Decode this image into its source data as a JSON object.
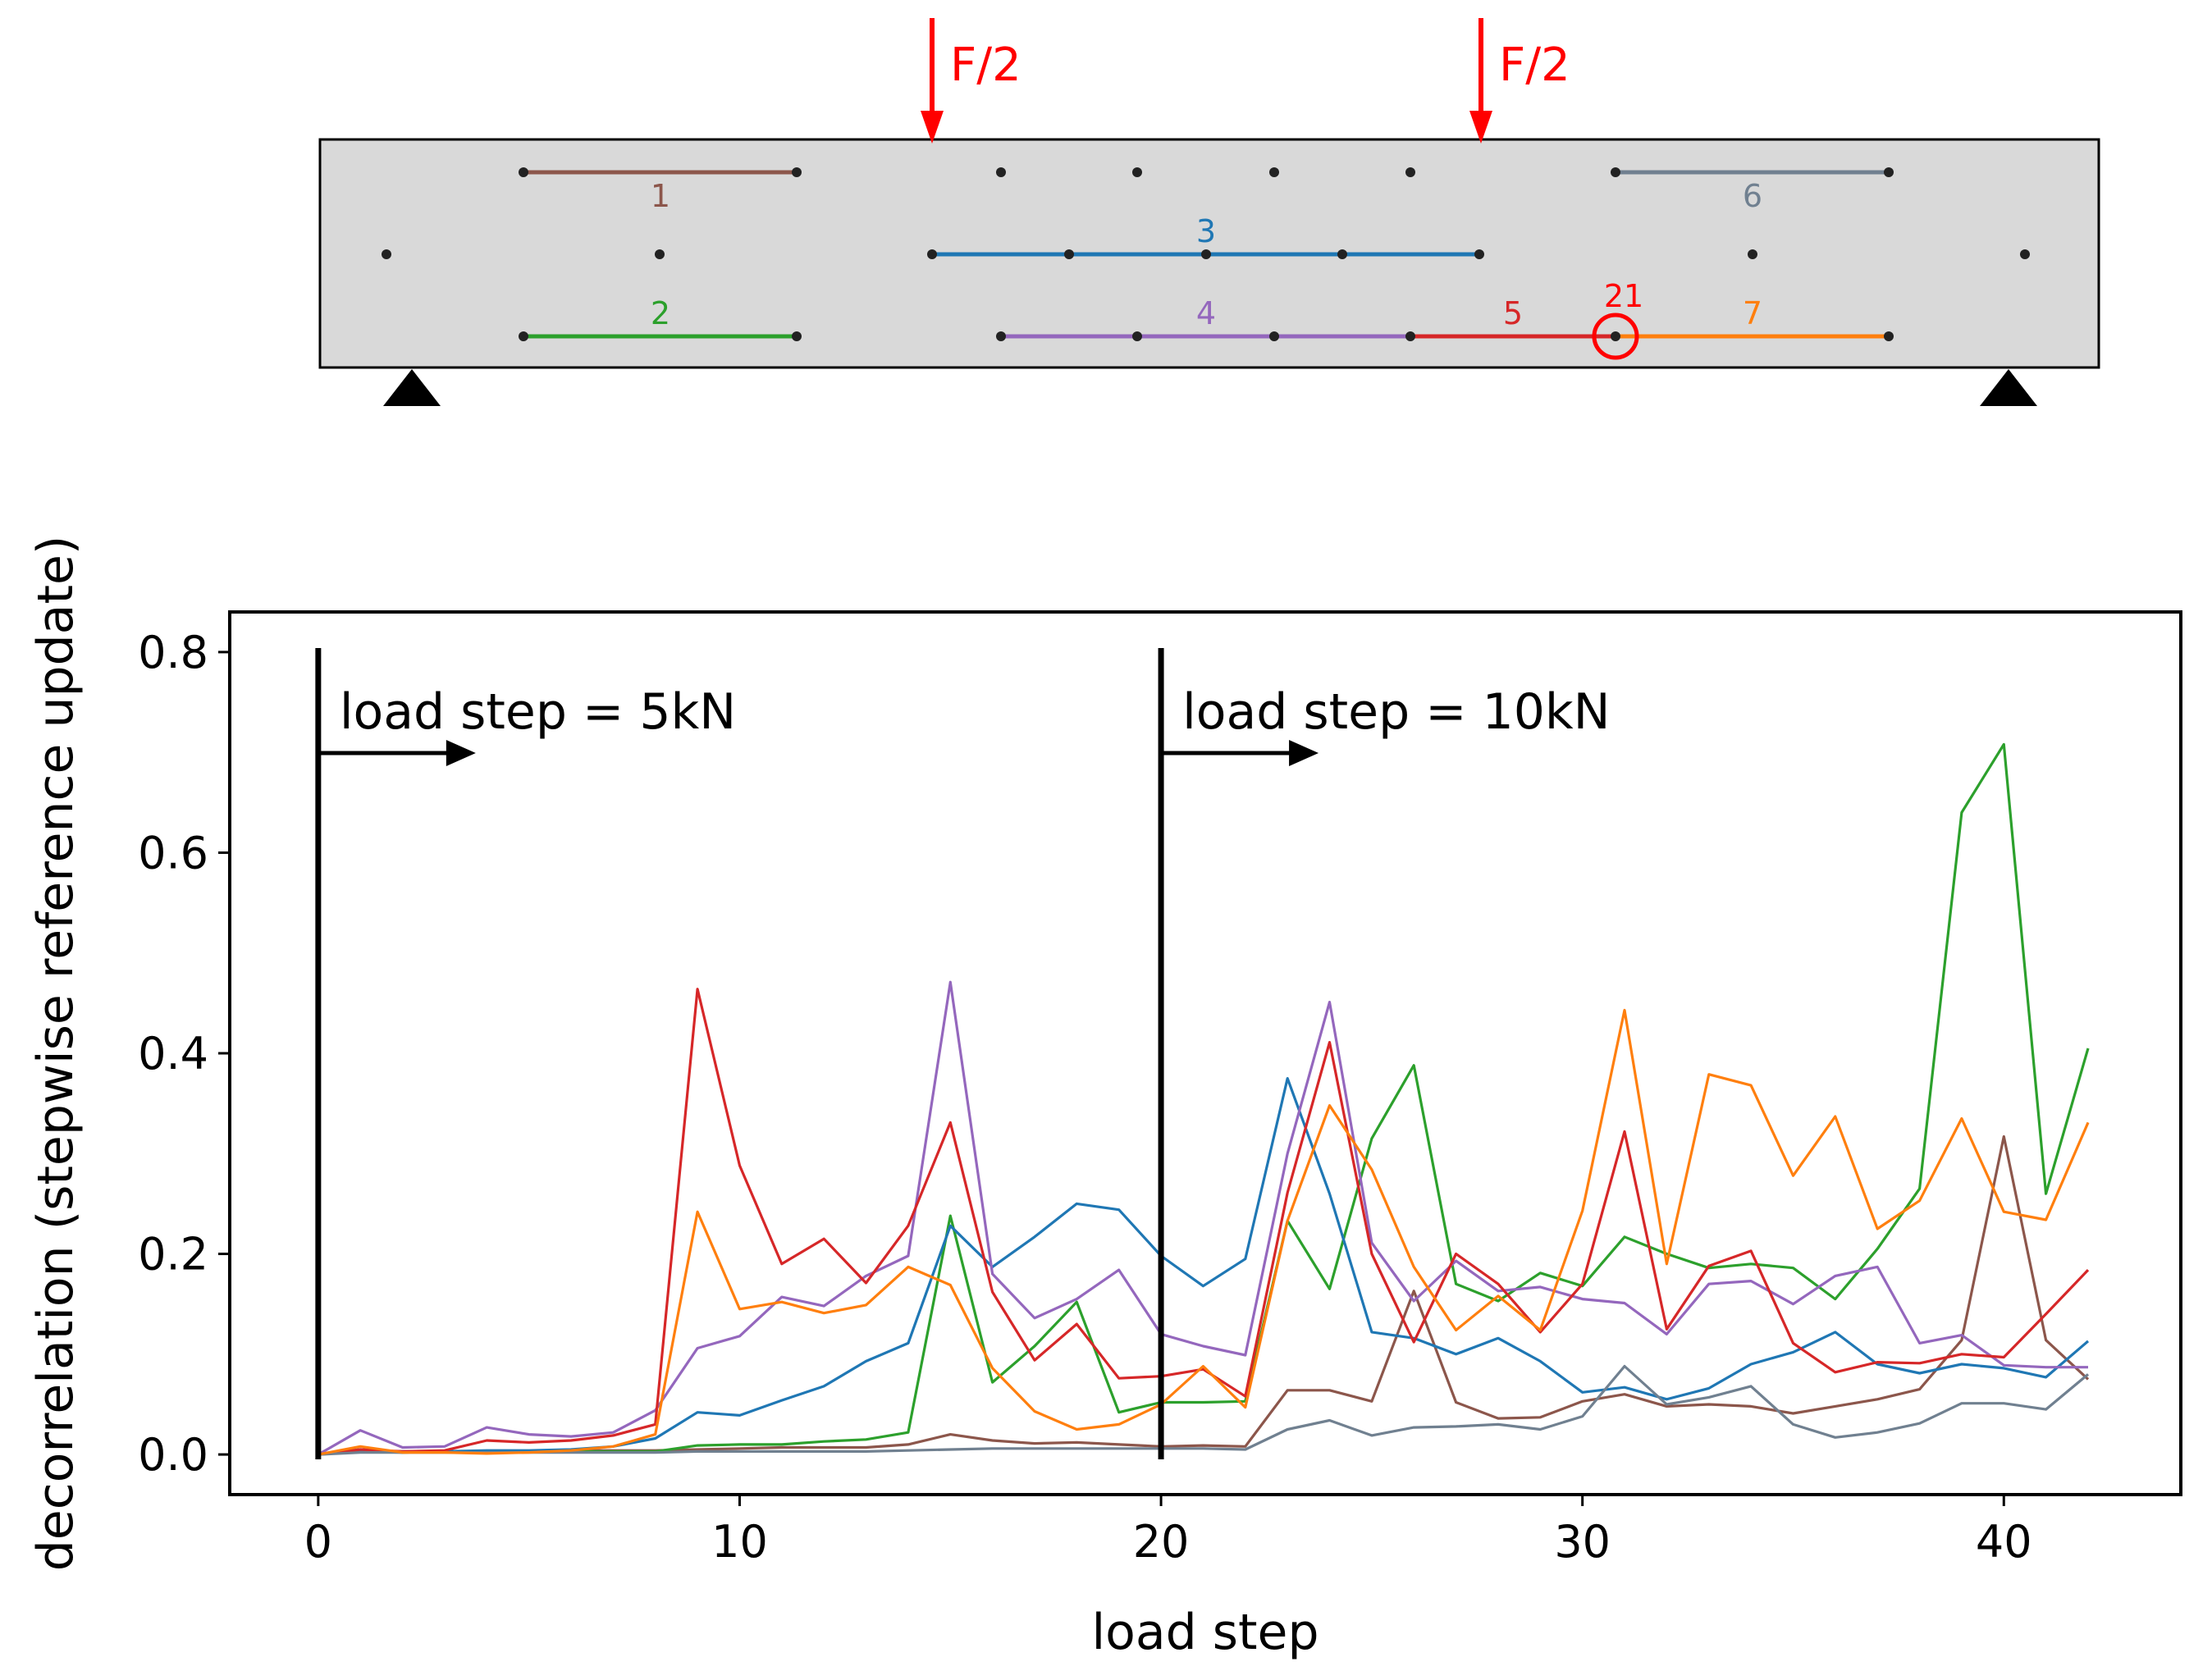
{
  "beam": {
    "forces": [
      {
        "label": "F/2"
      },
      {
        "label": "F/2"
      }
    ],
    "segments": [
      {
        "id": "1",
        "label": "1",
        "color": "#8c564b"
      },
      {
        "id": "2",
        "label": "2",
        "color": "#2ca02c"
      },
      {
        "id": "3",
        "label": "3",
        "color": "#1f77b4"
      },
      {
        "id": "4",
        "label": "4",
        "color": "#9467bd"
      },
      {
        "id": "5",
        "label": "5",
        "color": "#d62728"
      },
      {
        "id": "6",
        "label": "6",
        "color": "#708090"
      },
      {
        "id": "7",
        "label": "7",
        "color": "#ff7f0e"
      }
    ],
    "marker": {
      "label": "21",
      "color": "#ff0000"
    },
    "fill_color": "#d9d9d9",
    "force_color": "#ff0000"
  },
  "chart_data": {
    "type": "line",
    "xlabel": "load step",
    "ylabel": "decorrelation (stepwise reference update)",
    "xlim": [
      -2.1,
      44.2
    ],
    "ylim": [
      -0.04,
      0.84
    ],
    "xticks": [
      0,
      10,
      20,
      30,
      40
    ],
    "yticks": [
      0.0,
      0.2,
      0.4,
      0.6,
      0.8
    ],
    "xtick_labels": [
      "0",
      "10",
      "20",
      "30",
      "40"
    ],
    "ytick_labels": [
      "0.0",
      "0.2",
      "0.4",
      "0.6",
      "0.8"
    ],
    "annotations": [
      {
        "text": "load step = 5kN",
        "x": 0
      },
      {
        "text": "load step = 10kN",
        "x": 20
      }
    ],
    "x": [
      0,
      1,
      2,
      3,
      4,
      5,
      6,
      7,
      8,
      9,
      10,
      11,
      12,
      13,
      14,
      15,
      16,
      17,
      18,
      19,
      20,
      21,
      22,
      23,
      24,
      25,
      26,
      27,
      28,
      29,
      30,
      31,
      32,
      33,
      34,
      35,
      36,
      37,
      38,
      39,
      40,
      41,
      42
    ],
    "series": [
      {
        "name": "1",
        "color": "#8c564b",
        "values": [
          0.0,
          0.003,
          0.002,
          0.003,
          0.002,
          0.003,
          0.004,
          0.004,
          0.004,
          0.005,
          0.006,
          0.007,
          0.007,
          0.007,
          0.01,
          0.02,
          0.014,
          0.011,
          0.012,
          0.01,
          0.008,
          0.009,
          0.008,
          0.064,
          0.064,
          0.053,
          0.163,
          0.052,
          0.036,
          0.037,
          0.053,
          0.06,
          0.048,
          0.05,
          0.048,
          0.041,
          0.048,
          0.055,
          0.065,
          0.114,
          0.317,
          0.114,
          0.075
        ]
      },
      {
        "name": "2",
        "color": "#2ca02c",
        "values": [
          0.0,
          0.005,
          0.002,
          0.003,
          0.002,
          0.003,
          0.003,
          0.003,
          0.003,
          0.009,
          0.01,
          0.01,
          0.013,
          0.015,
          0.022,
          0.238,
          0.072,
          0.108,
          0.152,
          0.042,
          0.052,
          0.052,
          0.053,
          0.233,
          0.165,
          0.315,
          0.388,
          0.17,
          0.153,
          0.181,
          0.168,
          0.217,
          0.2,
          0.186,
          0.19,
          0.186,
          0.155,
          0.205,
          0.265,
          0.64,
          0.708,
          0.26,
          0.405
        ]
      },
      {
        "name": "3",
        "color": "#1f77b4",
        "values": [
          0.0,
          0.004,
          0.003,
          0.003,
          0.004,
          0.004,
          0.005,
          0.008,
          0.016,
          0.042,
          0.039,
          0.054,
          0.068,
          0.093,
          0.111,
          0.228,
          0.187,
          0.217,
          0.25,
          0.244,
          0.198,
          0.168,
          0.195,
          0.375,
          0.26,
          0.122,
          0.116,
          0.1,
          0.116,
          0.093,
          0.062,
          0.067,
          0.055,
          0.066,
          0.09,
          0.102,
          0.122,
          0.09,
          0.081,
          0.09,
          0.086,
          0.077,
          0.113
        ]
      },
      {
        "name": "4",
        "color": "#9467bd",
        "values": [
          0.0,
          0.024,
          0.007,
          0.008,
          0.027,
          0.02,
          0.018,
          0.022,
          0.044,
          0.106,
          0.118,
          0.157,
          0.148,
          0.178,
          0.198,
          0.471,
          0.18,
          0.136,
          0.155,
          0.184,
          0.12,
          0.108,
          0.099,
          0.3,
          0.451,
          0.211,
          0.153,
          0.193,
          0.163,
          0.167,
          0.155,
          0.151,
          0.12,
          0.17,
          0.173,
          0.15,
          0.178,
          0.187,
          0.111,
          0.119,
          0.089,
          0.087,
          0.087
        ]
      },
      {
        "name": "5",
        "color": "#d62728",
        "values": [
          0.0,
          0.005,
          0.003,
          0.004,
          0.014,
          0.012,
          0.014,
          0.019,
          0.03,
          0.464,
          0.288,
          0.19,
          0.215,
          0.171,
          0.228,
          0.331,
          0.162,
          0.094,
          0.13,
          0.076,
          0.078,
          0.085,
          0.058,
          0.261,
          0.411,
          0.2,
          0.112,
          0.2,
          0.17,
          0.122,
          0.17,
          0.322,
          0.125,
          0.188,
          0.203,
          0.111,
          0.082,
          0.092,
          0.091,
          0.1,
          0.097,
          0.14,
          0.184
        ]
      },
      {
        "name": "6",
        "color": "#708090",
        "values": [
          0.0,
          0.002,
          0.002,
          0.002,
          0.002,
          0.002,
          0.002,
          0.002,
          0.002,
          0.003,
          0.003,
          0.003,
          0.003,
          0.003,
          0.004,
          0.005,
          0.006,
          0.006,
          0.006,
          0.006,
          0.006,
          0.006,
          0.005,
          0.025,
          0.034,
          0.019,
          0.027,
          0.028,
          0.03,
          0.025,
          0.038,
          0.088,
          0.05,
          0.057,
          0.068,
          0.03,
          0.017,
          0.022,
          0.031,
          0.051,
          0.051,
          0.045,
          0.08
        ]
      },
      {
        "name": "7",
        "color": "#ff7f0e",
        "values": [
          0.0,
          0.008,
          0.002,
          0.002,
          0.001,
          0.002,
          0.004,
          0.008,
          0.02,
          0.242,
          0.145,
          0.152,
          0.141,
          0.149,
          0.187,
          0.169,
          0.086,
          0.043,
          0.025,
          0.03,
          0.05,
          0.088,
          0.047,
          0.233,
          0.348,
          0.284,
          0.187,
          0.124,
          0.158,
          0.124,
          0.243,
          0.443,
          0.19,
          0.379,
          0.368,
          0.278,
          0.337,
          0.225,
          0.253,
          0.335,
          0.242,
          0.234,
          0.331
        ]
      }
    ]
  }
}
